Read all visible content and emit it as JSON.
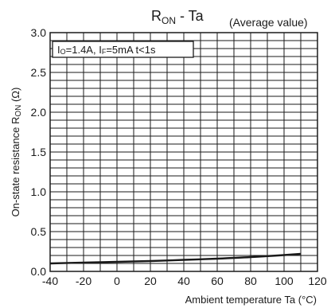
{
  "chart_data": {
    "type": "line",
    "title": {
      "main": "R",
      "sub": "ON",
      "rest": " - Ta"
    },
    "title_note": "(Average value)",
    "condition": {
      "io_main": "I",
      "io_sub": "O",
      "io_val": "=1.4A, ",
      "if_main": "I",
      "if_sub": "F",
      "if_val": "=5mA t<1s"
    },
    "xlabel": "Ambient temperature Ta (°C)",
    "ylabel": {
      "pre": "On-state resistance R",
      "sub": "ON",
      "post": " (Ω)"
    },
    "xlim": [
      -40,
      120
    ],
    "ylim": [
      0,
      3.0
    ],
    "x_ticks": [
      "-40",
      "-20",
      "0",
      "20",
      "40",
      "60",
      "80",
      "100",
      "120"
    ],
    "y_ticks": [
      "0.0",
      "0.5",
      "1.0",
      "1.5",
      "2.0",
      "2.5",
      "3.0"
    ],
    "x_minor_step": 10,
    "y_minor_step": 0.1,
    "grid": true,
    "series": [
      {
        "x": [
          -40,
          -20,
          0,
          20,
          40,
          60,
          80,
          100,
          110
        ],
        "y": [
          0.1,
          0.11,
          0.12,
          0.13,
          0.145,
          0.16,
          0.18,
          0.205,
          0.22
        ]
      }
    ]
  }
}
